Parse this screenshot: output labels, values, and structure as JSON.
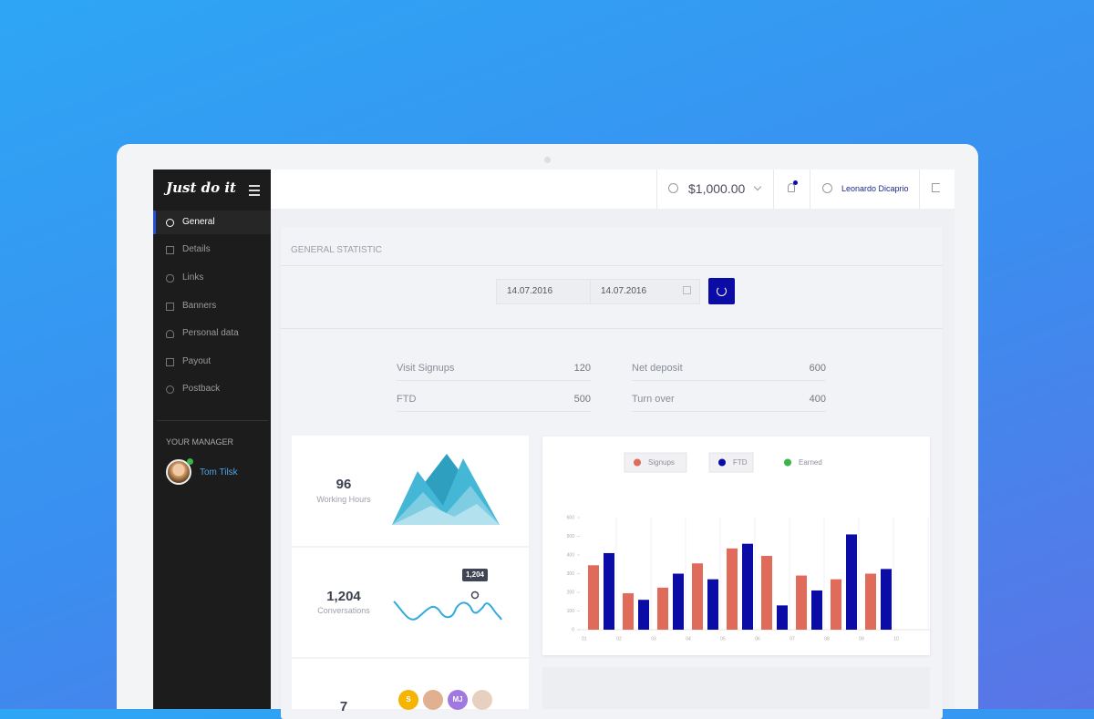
{
  "brand": "Just do it",
  "menu": [
    "General",
    "Details",
    "Links",
    "Banners",
    "Personal data",
    "Payout",
    "Postback"
  ],
  "manager": {
    "heading": "YOUR MANAGER",
    "name": "Tom Tilsk"
  },
  "topbar": {
    "balance": "$1,000.00",
    "user": "Leonardo Dicaprio"
  },
  "panel": {
    "title": "GENERAL STATISTIC",
    "date_from": "14.07.2016",
    "date_to": "14.07.2016"
  },
  "stats": [
    {
      "label": "Visit Signups",
      "value": 120
    },
    {
      "label": "Net deposit",
      "value": 600
    },
    {
      "label": "FTD",
      "value": 500
    },
    {
      "label": "Turn over",
      "value": 400
    }
  ],
  "cards": [
    {
      "value": 96,
      "label": "Working Hours"
    },
    {
      "value": "1,204",
      "label": "Conversations",
      "tooltip": "1,204"
    },
    {
      "value": 7
    }
  ],
  "avatars": [
    "S",
    "MJ"
  ],
  "chart_data": {
    "type": "bar",
    "categories": [
      "01",
      "02",
      "03",
      "04",
      "05",
      "06",
      "07",
      "08",
      "09",
      "10"
    ],
    "series": [
      {
        "name": "Signups",
        "color": "#e06b5a",
        "values": [
          345,
          195,
          225,
          355,
          435,
          395,
          290,
          270,
          300,
          null
        ]
      },
      {
        "name": "FTD",
        "color": "#0b0ba6",
        "values": [
          410,
          160,
          300,
          270,
          460,
          130,
          210,
          510,
          325,
          null
        ]
      },
      {
        "name": "Earned",
        "color": "#3bb54a",
        "values": [
          null,
          null,
          null,
          null,
          null,
          null,
          null,
          null,
          null,
          null
        ]
      }
    ],
    "ylim": [
      0,
      600
    ],
    "yticks": [
      0,
      100,
      200,
      300,
      400,
      500,
      600
    ],
    "legend": "top"
  }
}
